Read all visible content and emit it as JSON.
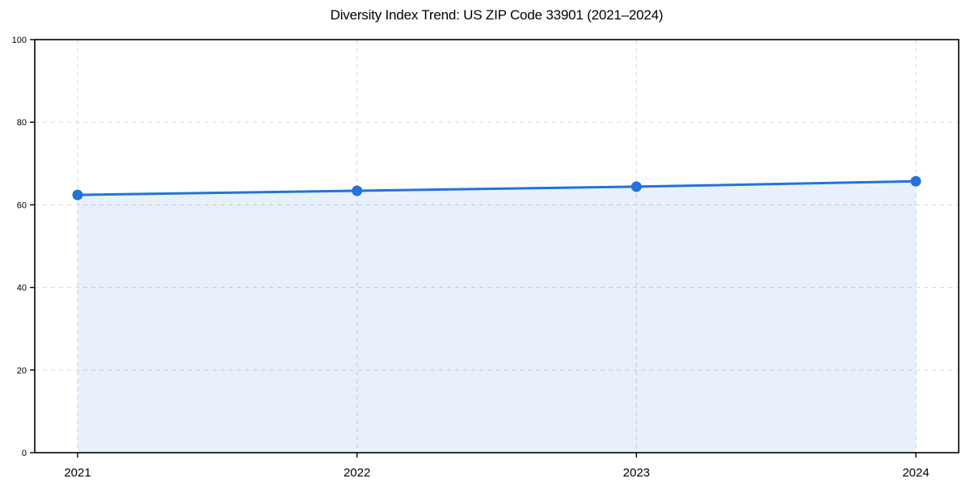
{
  "chart_data": {
    "type": "area",
    "title": "Diversity Index Trend: US ZIP Code 33901 (2021–2024)",
    "categories": [
      "2021",
      "2022",
      "2023",
      "2024"
    ],
    "series": [
      {
        "name": "Diversity Index",
        "values": [
          62.4,
          63.4,
          64.4,
          65.7
        ]
      }
    ],
    "xlabel": "",
    "ylabel": "",
    "ylim": [
      0,
      100
    ],
    "yticks": [
      0,
      20,
      40,
      60,
      80,
      100
    ],
    "grid": true,
    "grid_style": "dashed",
    "legend_position": "none",
    "colors": {
      "line": "#2273dc",
      "marker": "#2273dc",
      "fill": "#2273dc",
      "fill_opacity": 0.1,
      "grid": "#dcdcdc",
      "axis": "#000000",
      "title_text": "#000000",
      "tick_text": "#000000"
    }
  }
}
